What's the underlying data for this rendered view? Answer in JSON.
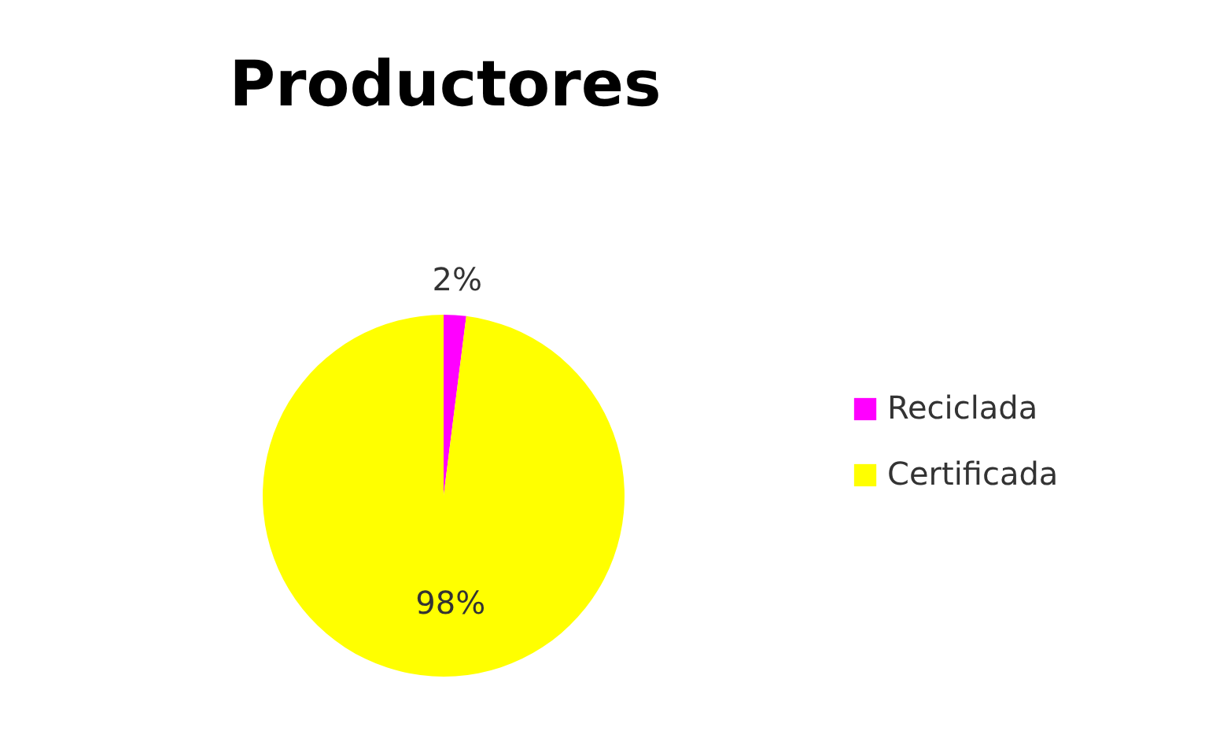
{
  "chart_data": {
    "type": "pie",
    "title": "Productores",
    "categories": [
      "Reciclada",
      "Certificada"
    ],
    "values": [
      2,
      98
    ],
    "colors": [
      "#ff00ff",
      "#ffff00"
    ],
    "value_labels": [
      "2%",
      "98%"
    ],
    "legend": "right"
  }
}
